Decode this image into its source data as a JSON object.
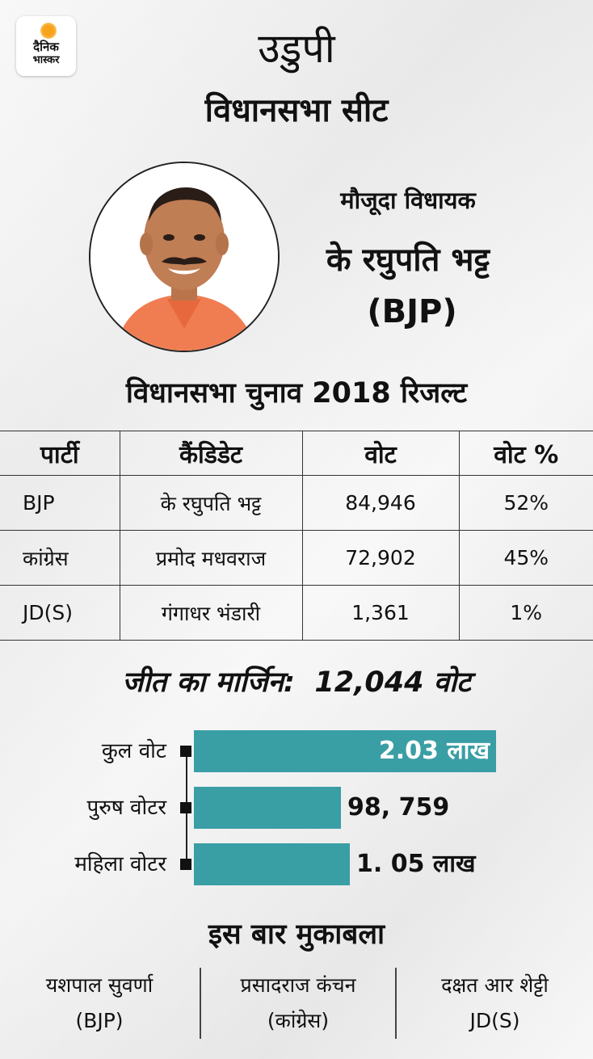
{
  "logo": {
    "line1": "दैनिक",
    "line2": "भास्कर"
  },
  "header": {
    "city": "उडुपी",
    "subtitle": "विधानसभा सीट"
  },
  "mla": {
    "label": "मौजूदा विधायक",
    "name": "के रघुपति भट्ट",
    "party": "(BJP)"
  },
  "results": {
    "title": "विधानसभा चुनाव 2018 रिजल्ट",
    "headers": [
      "पार्टी",
      "कैंडिडेट",
      "वोट",
      "वोट %"
    ],
    "rows": [
      [
        "BJP",
        "के रघुपति भट्ट",
        "84,946",
        "52%"
      ],
      [
        "कांग्रेस",
        "प्रमोद मधवराज",
        "72,902",
        "45%"
      ],
      [
        "JD(S)",
        "गंगाधर भंडारी",
        "1,361",
        "1%"
      ]
    ]
  },
  "margin": {
    "label": "जीत का मार्जिन:",
    "value": "12,044 वोट"
  },
  "voters": {
    "color": "#3a9ea5",
    "bars": [
      {
        "label": "कुल वोट",
        "value_text": "2.03 लाख",
        "value_lakh": 2.03
      },
      {
        "label": "पुरुष वोटर",
        "value_text": "98, 759",
        "value_lakh": 0.98759
      },
      {
        "label": "महिला वोटर",
        "value_text": "1. 05 लाख",
        "value_lakh": 1.05
      }
    ]
  },
  "contest": {
    "title": "इस बार मुकाबला",
    "candidates": [
      {
        "name": "यशपाल सुवर्णा",
        "party": "(BJP)"
      },
      {
        "name": "प्रसादराज कंचन",
        "party": "(कांग्रेस)"
      },
      {
        "name": "दक्षत आर शेट्टी",
        "party": "JD(S)"
      }
    ]
  }
}
